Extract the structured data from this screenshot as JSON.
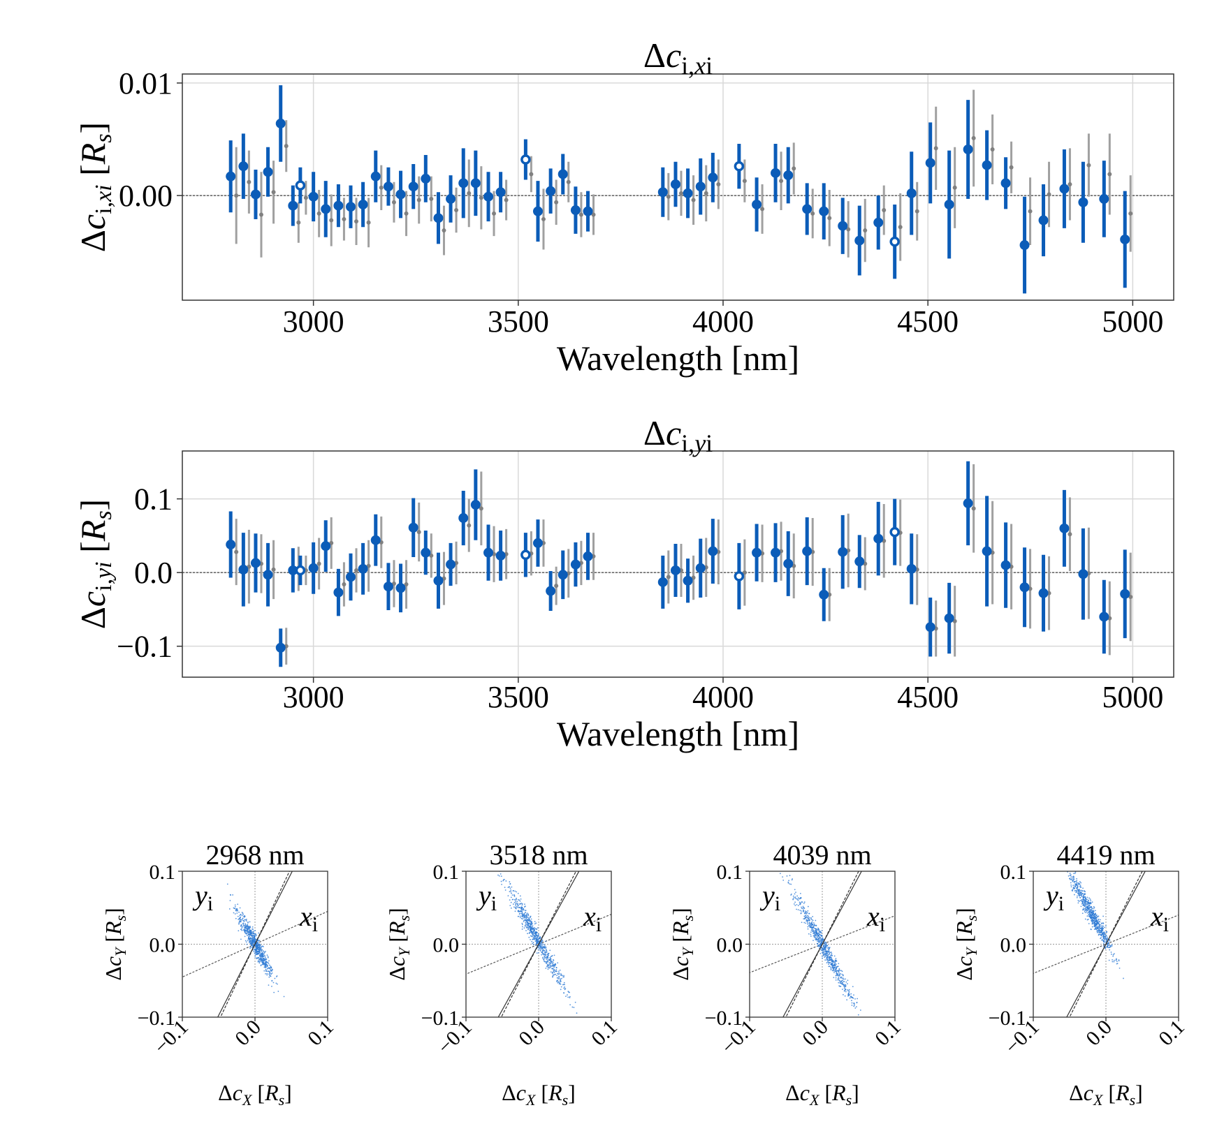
{
  "colors": {
    "primary": "#0b5cb8",
    "secondary": "#a0a0a0",
    "secondary_dot": "#808080",
    "grid": "#d9d9d9",
    "scatter": "#2e7bd4"
  },
  "chart_data": [
    {
      "type": "errorbar",
      "title": "Δc_{i,xi}",
      "title_parts": {
        "base": "Δc",
        "sub": "i,",
        "sub_it": "x",
        "sub_end": "i"
      },
      "xlabel": "Wavelength [nm]",
      "ylabel": "Δc_{i,xi} [R_s]",
      "ylabel_parts": {
        "pre": "Δc",
        "sub": "i,",
        "sub_it": "xi",
        "post": " [",
        "unit": "R",
        "unit_sub": "s",
        "end": "]"
      },
      "xlim": [
        2680,
        5100
      ],
      "ylim": [
        -0.0093,
        0.0108
      ],
      "xticks": [
        3000,
        3500,
        4000,
        4500,
        5000
      ],
      "yticks": [
        -0.01,
        0.0,
        0.01
      ],
      "ytick_labels": [
        "",
        "0.00",
        "0.01"
      ],
      "zero_line": true,
      "open_markers_at": [
        2968,
        3518,
        4039,
        4419
      ],
      "x": [
        2798,
        2829,
        2859,
        2889,
        2920,
        2950,
        2968,
        3000,
        3030,
        3061,
        3091,
        3121,
        3152,
        3183,
        3213,
        3244,
        3274,
        3305,
        3335,
        3366,
        3396,
        3427,
        3457,
        3518,
        3548,
        3579,
        3609,
        3640,
        3670,
        3853,
        3884,
        3914,
        3945,
        3975,
        4039,
        4082,
        4128,
        4159,
        4205,
        4246,
        4292,
        4333,
        4379,
        4419,
        4460,
        4506,
        4552,
        4598,
        4644,
        4690,
        4736,
        4782,
        4833,
        4879,
        4930,
        4981
      ],
      "series": [
        {
          "name": "primary",
          "y": [
            0.0017,
            0.0026,
            0.0001,
            0.0021,
            0.0064,
            -0.0009,
            0.0009,
            -0.0001,
            -0.0012,
            -0.0009,
            -0.001,
            -0.0008,
            0.0017,
            0.0008,
            0.0001,
            0.0008,
            0.0015,
            -0.002,
            -0.0003,
            0.0011,
            0.0011,
            -0.0001,
            0.0003,
            0.0032,
            -0.0014,
            0.0004,
            0.0019,
            -0.0013,
            -0.0014,
            0.0003,
            0.001,
            0.0002,
            0.0008,
            0.0016,
            0.0026,
            -0.0008,
            0.002,
            0.0018,
            -0.0012,
            -0.0014,
            -0.0027,
            -0.004,
            -0.0024,
            -0.0041,
            0.0002,
            0.0029,
            -0.0008,
            0.0041,
            0.0027,
            0.0011,
            -0.0044,
            -0.0022,
            0.0006,
            -0.0006,
            -0.0003,
            -0.0039
          ],
          "err": [
            0.0032,
            0.0029,
            0.0022,
            0.0022,
            0.0034,
            0.0018,
            0.0016,
            0.0022,
            0.0025,
            0.0019,
            0.0019,
            0.002,
            0.0023,
            0.0017,
            0.0021,
            0.002,
            0.0021,
            0.0023,
            0.0021,
            0.0031,
            0.0029,
            0.0022,
            0.0018,
            0.0018,
            0.0027,
            0.002,
            0.0018,
            0.0021,
            0.0018,
            0.0022,
            0.002,
            0.0022,
            0.0025,
            0.0022,
            0.002,
            0.0024,
            0.0026,
            0.0025,
            0.0023,
            0.0025,
            0.0025,
            0.0031,
            0.0024,
            0.0033,
            0.0037,
            0.0036,
            0.0048,
            0.0044,
            0.0031,
            0.0023,
            0.0043,
            0.0032,
            0.0035,
            0.0036,
            0.0034,
            0.0043
          ]
        },
        {
          "name": "secondary",
          "y": [
            0.0,
            0.0012,
            -0.0017,
            0.0003,
            0.0044,
            -0.0024,
            -0.0002,
            -0.0016,
            -0.0022,
            -0.0021,
            -0.0023,
            -0.0024,
            0.0007,
            -0.0006,
            -0.0016,
            -0.0004,
            -0.0003,
            -0.0031,
            -0.0013,
            0.0002,
            -0.0002,
            -0.0016,
            -0.0004,
            0.0019,
            -0.0021,
            -0.0006,
            0.0012,
            -0.0017,
            -0.0017,
            -0.0001,
            0.0002,
            -0.0004,
            0.0002,
            0.001,
            0.0013,
            -0.0012,
            0.0013,
            0.0024,
            -0.0016,
            -0.002,
            -0.003,
            -0.0031,
            -0.0013,
            -0.0028,
            -0.0014,
            0.0042,
            0.0007,
            0.0051,
            0.0041,
            0.0025,
            -0.0014,
            0.0001,
            0.001,
            0.0027,
            0.0019,
            -0.0016
          ],
          "err": [
            0.0043,
            0.0028,
            0.0038,
            0.0028,
            0.0023,
            0.0018,
            0.0015,
            0.0021,
            0.0023,
            0.0019,
            0.0021,
            0.0022,
            0.002,
            0.0018,
            0.002,
            0.0021,
            0.002,
            0.0022,
            0.002,
            0.003,
            0.0028,
            0.002,
            0.0018,
            0.0016,
            0.0027,
            0.002,
            0.0018,
            0.002,
            0.0018,
            0.0021,
            0.002,
            0.0022,
            0.0025,
            0.0022,
            0.0019,
            0.0022,
            0.0026,
            0.0023,
            0.0022,
            0.0025,
            0.0025,
            0.0028,
            0.0022,
            0.003,
            0.0026,
            0.0037,
            0.0036,
            0.0043,
            0.0031,
            0.0023,
            0.003,
            0.0029,
            0.0032,
            0.0028,
            0.0036,
            0.0034
          ]
        }
      ]
    },
    {
      "type": "errorbar",
      "title": "Δc_{i,yi}",
      "title_parts": {
        "base": "Δc",
        "sub": "i,",
        "sub_it": "y",
        "sub_end": "i"
      },
      "xlabel": "Wavelength [nm]",
      "ylabel": "Δc_{i,yi} [R_s]",
      "ylabel_parts": {
        "pre": "Δc",
        "sub": "i,",
        "sub_it": "yi",
        "post": " [",
        "unit": "R",
        "unit_sub": "s",
        "end": "]"
      },
      "xlim": [
        2680,
        5100
      ],
      "ylim": [
        -0.142,
        0.165
      ],
      "xticks": [
        3000,
        3500,
        4000,
        4500,
        5000
      ],
      "yticks": [
        -0.1,
        0.0,
        0.1
      ],
      "ytick_labels": [
        "−0.1",
        "0.0",
        "0.1"
      ],
      "zero_line": true,
      "open_markers_at": [
        2968,
        3518,
        4039,
        4419
      ],
      "x": [
        2798,
        2829,
        2859,
        2889,
        2920,
        2950,
        2968,
        3000,
        3030,
        3061,
        3091,
        3121,
        3152,
        3183,
        3213,
        3244,
        3274,
        3305,
        3335,
        3366,
        3396,
        3427,
        3457,
        3518,
        3548,
        3579,
        3609,
        3640,
        3670,
        3853,
        3884,
        3914,
        3945,
        3975,
        4039,
        4082,
        4128,
        4159,
        4205,
        4246,
        4292,
        4333,
        4379,
        4419,
        4460,
        4506,
        4552,
        4598,
        4644,
        4690,
        4736,
        4782,
        4833,
        4879,
        4930,
        4981
      ],
      "series": [
        {
          "name": "primary",
          "y": [
            0.038,
            0.004,
            0.013,
            -0.003,
            -0.102,
            0.003,
            0.003,
            0.006,
            0.036,
            -0.027,
            -0.006,
            0.005,
            0.044,
            -0.019,
            -0.021,
            0.061,
            0.027,
            -0.011,
            0.011,
            0.074,
            0.092,
            0.027,
            0.023,
            0.024,
            0.04,
            -0.025,
            -0.003,
            0.011,
            0.022,
            -0.013,
            0.003,
            -0.011,
            0.006,
            0.029,
            -0.005,
            0.027,
            0.027,
            0.012,
            0.029,
            -0.03,
            0.028,
            0.015,
            0.046,
            0.055,
            0.005,
            -0.074,
            -0.062,
            0.094,
            0.029,
            0.01,
            -0.02,
            -0.028,
            0.06,
            -0.002,
            -0.06,
            -0.029
          ],
          "err": [
            0.045,
            0.05,
            0.04,
            0.043,
            0.026,
            0.03,
            0.02,
            0.035,
            0.035,
            0.032,
            0.032,
            0.035,
            0.035,
            0.032,
            0.033,
            0.04,
            0.03,
            0.038,
            0.029,
            0.037,
            0.048,
            0.038,
            0.034,
            0.03,
            0.032,
            0.027,
            0.033,
            0.03,
            0.032,
            0.036,
            0.036,
            0.03,
            0.04,
            0.044,
            0.045,
            0.039,
            0.04,
            0.044,
            0.046,
            0.036,
            0.05,
            0.036,
            0.05,
            0.045,
            0.048,
            0.04,
            0.048,
            0.057,
            0.075,
            0.058,
            0.054,
            0.052,
            0.052,
            0.062,
            0.05,
            0.06
          ]
        },
        {
          "name": "secondary",
          "y": [
            0.028,
            0.008,
            0.012,
            0.004,
            -0.1,
            0.005,
            0.003,
            0.012,
            0.04,
            -0.016,
            0.003,
            0.009,
            0.041,
            -0.015,
            -0.016,
            0.055,
            0.023,
            -0.008,
            0.013,
            0.064,
            0.087,
            0.025,
            0.025,
            0.026,
            0.04,
            -0.018,
            -0.001,
            0.013,
            0.022,
            -0.006,
            0.003,
            -0.007,
            0.007,
            0.028,
            0.0,
            0.026,
            0.029,
            0.009,
            0.028,
            -0.03,
            0.03,
            0.012,
            0.043,
            0.054,
            0.004,
            -0.076,
            -0.066,
            0.087,
            0.027,
            0.008,
            -0.022,
            -0.028,
            0.052,
            -0.001,
            -0.062,
            -0.033
          ],
          "err": [
            0.045,
            0.05,
            0.04,
            0.04,
            0.025,
            0.03,
            0.02,
            0.035,
            0.035,
            0.03,
            0.03,
            0.035,
            0.035,
            0.032,
            0.033,
            0.04,
            0.03,
            0.036,
            0.029,
            0.036,
            0.05,
            0.038,
            0.034,
            0.03,
            0.032,
            0.026,
            0.033,
            0.03,
            0.032,
            0.036,
            0.036,
            0.03,
            0.04,
            0.044,
            0.045,
            0.039,
            0.04,
            0.044,
            0.046,
            0.036,
            0.05,
            0.036,
            0.05,
            0.045,
            0.048,
            0.038,
            0.048,
            0.06,
            0.07,
            0.058,
            0.054,
            0.05,
            0.05,
            0.062,
            0.05,
            0.06
          ]
        }
      ]
    },
    {
      "type": "scatter",
      "panels": [
        {
          "title": "2968 nm",
          "xi_slope": 0.45,
          "yi_slope": -1.95,
          "cloud_center": [
            0.0,
            0.0
          ],
          "cloud_spread": 0.026
        },
        {
          "title": "3518 nm",
          "xi_slope": 0.41,
          "yi_slope": -1.8,
          "cloud_center": [
            -0.004,
            0.01
          ],
          "cloud_spread": 0.04
        },
        {
          "title": "4039 nm",
          "xi_slope": 0.39,
          "yi_slope": -1.85,
          "cloud_center": [
            0.002,
            -0.004
          ],
          "cloud_spread": 0.042
        },
        {
          "title": "4419 nm",
          "xi_slope": 0.4,
          "yi_slope": -1.85,
          "cloud_center": [
            -0.02,
            0.042
          ],
          "cloud_spread": 0.03
        }
      ],
      "xlim": [
        -0.1,
        0.1
      ],
      "ylim": [
        -0.1,
        0.1
      ],
      "xticks": [
        -0.1,
        0.0,
        0.1
      ],
      "yticks": [
        -0.1,
        0.0,
        0.1
      ],
      "xtick_labels": [
        "−0.1",
        "0.0",
        "0.1"
      ],
      "ytick_labels": [
        "−0.1",
        "0.0",
        "0.1"
      ],
      "xlabel": "Δc_X [R_s]",
      "ylabel": "Δc_Y [R_s]",
      "xlabel_parts": {
        "pre": "Δc",
        "sub": "X",
        "post": " [",
        "unit": "R",
        "unit_sub": "s",
        "end": "]"
      },
      "ylabel_parts": {
        "pre": "Δc",
        "sub": "Y",
        "post": " [",
        "unit": "R",
        "unit_sub": "s",
        "end": "]"
      },
      "axis_tags": {
        "x": "x",
        "y": "y",
        "sub": "i"
      }
    }
  ]
}
